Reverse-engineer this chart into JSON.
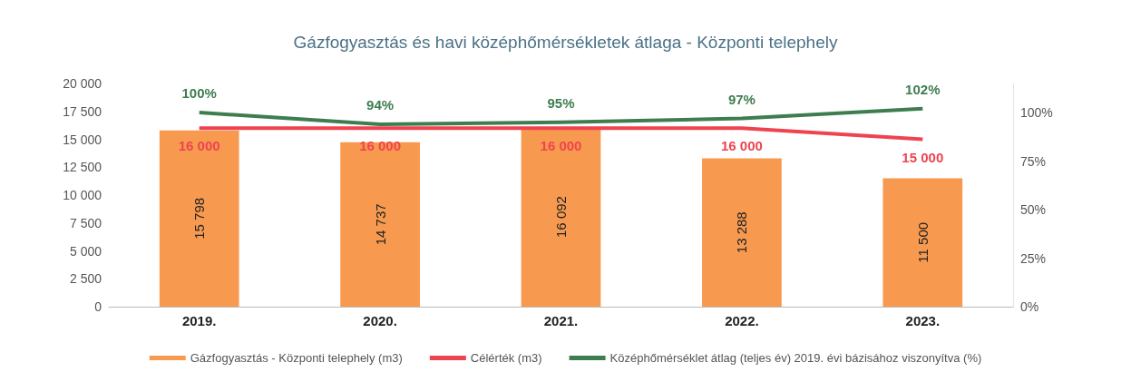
{
  "chart_data": {
    "type": "bar",
    "title": "Gázfogyasztás és havi középhőmérsékletek átlaga - Központi telephely",
    "categories": [
      "2019.",
      "2020.",
      "2021.",
      "2022.",
      "2023."
    ],
    "series": [
      {
        "name": "Gázfogyasztás - Központi telephely (m3)",
        "color": "#f79a4f",
        "values": [
          15798,
          14737,
          16092,
          13288,
          11500
        ],
        "value_labels": [
          "15 798",
          "14 737",
          "16 092",
          "13 288",
          "11 500"
        ]
      },
      {
        "name": "Célérték (m3)",
        "type": "line",
        "color": "#ee4450",
        "values": [
          16000,
          16000,
          16000,
          16000,
          15000
        ],
        "value_labels": [
          "16 000",
          "16 000",
          "16 000",
          "16 000",
          "15 000"
        ]
      },
      {
        "name": "Középhőmérséklet átlag (teljes év) 2019. évi bázisához viszonyítva (%)",
        "type": "line",
        "axis": "y2",
        "color": "#3e7d4f",
        "values": [
          100,
          94,
          95,
          97,
          102
        ],
        "value_labels": [
          "100%",
          "94%",
          "95%",
          "97%",
          "102%"
        ]
      }
    ],
    "ylim": [
      0,
      20000
    ],
    "yticks": [
      {
        "value": 0,
        "label": "0"
      },
      {
        "value": 2500,
        "label": "2 500"
      },
      {
        "value": 5000,
        "label": "5 000"
      },
      {
        "value": 7500,
        "label": "7 500"
      },
      {
        "value": 10000,
        "label": "10 000"
      },
      {
        "value": 12500,
        "label": "12 500"
      },
      {
        "value": 15000,
        "label": "15 000"
      },
      {
        "value": 17500,
        "label": "17 500"
      },
      {
        "value": 20000,
        "label": "20 000"
      }
    ],
    "y2lim": [
      0,
      115
    ],
    "y2ticks": [
      {
        "value": 0,
        "label": "0%"
      },
      {
        "value": 25,
        "label": "25%"
      },
      {
        "value": 50,
        "label": "50%"
      },
      {
        "value": 75,
        "label": "75%"
      },
      {
        "value": 100,
        "label": "100%"
      }
    ],
    "legend": "bottom",
    "grid": false,
    "marker": "none"
  }
}
